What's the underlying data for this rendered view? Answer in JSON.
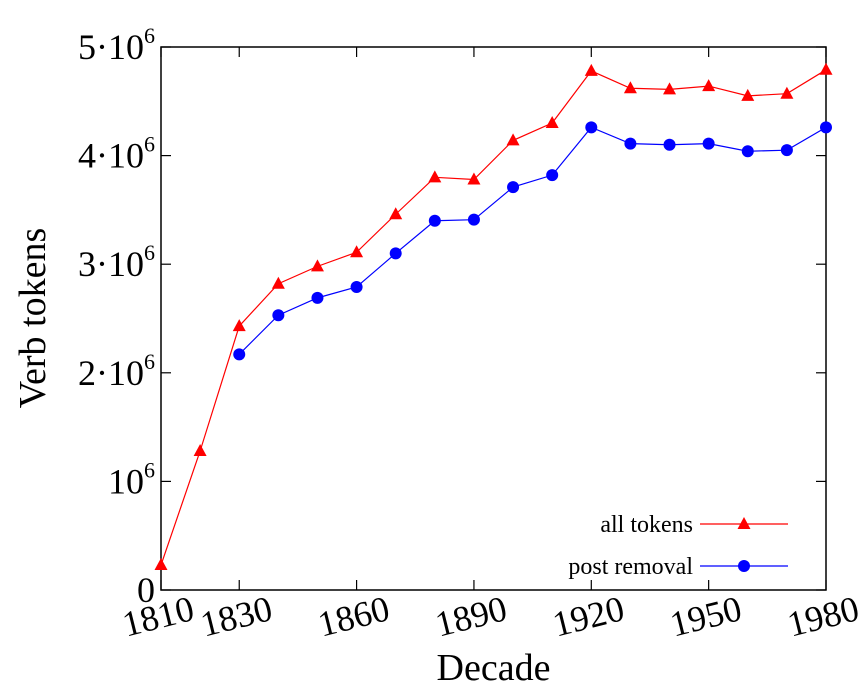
{
  "chart_data": {
    "type": "line",
    "title": "",
    "xlabel": "Decade",
    "ylabel": "Verb tokens",
    "xlim": [
      1810,
      1980
    ],
    "ylim": [
      0,
      5000000
    ],
    "x_ticks": [
      {
        "value": 1810,
        "label": "1810"
      },
      {
        "value": 1830,
        "label": "1830"
      },
      {
        "value": 1860,
        "label": "1860"
      },
      {
        "value": 1890,
        "label": "1890"
      },
      {
        "value": 1920,
        "label": "1920"
      },
      {
        "value": 1950,
        "label": "1950"
      },
      {
        "value": 1980,
        "label": "1980"
      }
    ],
    "y_ticks": [
      {
        "value": 0,
        "base": "0",
        "exp": ""
      },
      {
        "value": 1000000,
        "base": "10",
        "exp": "6"
      },
      {
        "value": 2000000,
        "base": "2·10",
        "exp": "6"
      },
      {
        "value": 3000000,
        "base": "3·10",
        "exp": "6"
      },
      {
        "value": 4000000,
        "base": "4·10",
        "exp": "6"
      },
      {
        "value": 5000000,
        "base": "5·10",
        "exp": "6"
      }
    ],
    "grid": false,
    "legend_position": "bottom-right",
    "series": [
      {
        "name": "all tokens",
        "color": "#ff0000",
        "marker": "triangle",
        "x": [
          1810,
          1820,
          1830,
          1840,
          1850,
          1860,
          1870,
          1880,
          1890,
          1900,
          1910,
          1920,
          1930,
          1940,
          1950,
          1960,
          1970,
          1980
        ],
        "y": [
          230000,
          1280000,
          2430000,
          2820000,
          2980000,
          3110000,
          3460000,
          3800000,
          3780000,
          4140000,
          4300000,
          4780000,
          4620000,
          4610000,
          4640000,
          4550000,
          4570000,
          4790000
        ]
      },
      {
        "name": "post removal",
        "color": "#0000ff",
        "marker": "circle",
        "x": [
          1830,
          1840,
          1850,
          1860,
          1870,
          1880,
          1890,
          1900,
          1910,
          1920,
          1930,
          1940,
          1950,
          1960,
          1970,
          1980
        ],
        "y": [
          2170000,
          2530000,
          2690000,
          2790000,
          3100000,
          3400000,
          3410000,
          3710000,
          3820000,
          4260000,
          4110000,
          4100000,
          4110000,
          4040000,
          4050000,
          4260000
        ]
      }
    ]
  }
}
